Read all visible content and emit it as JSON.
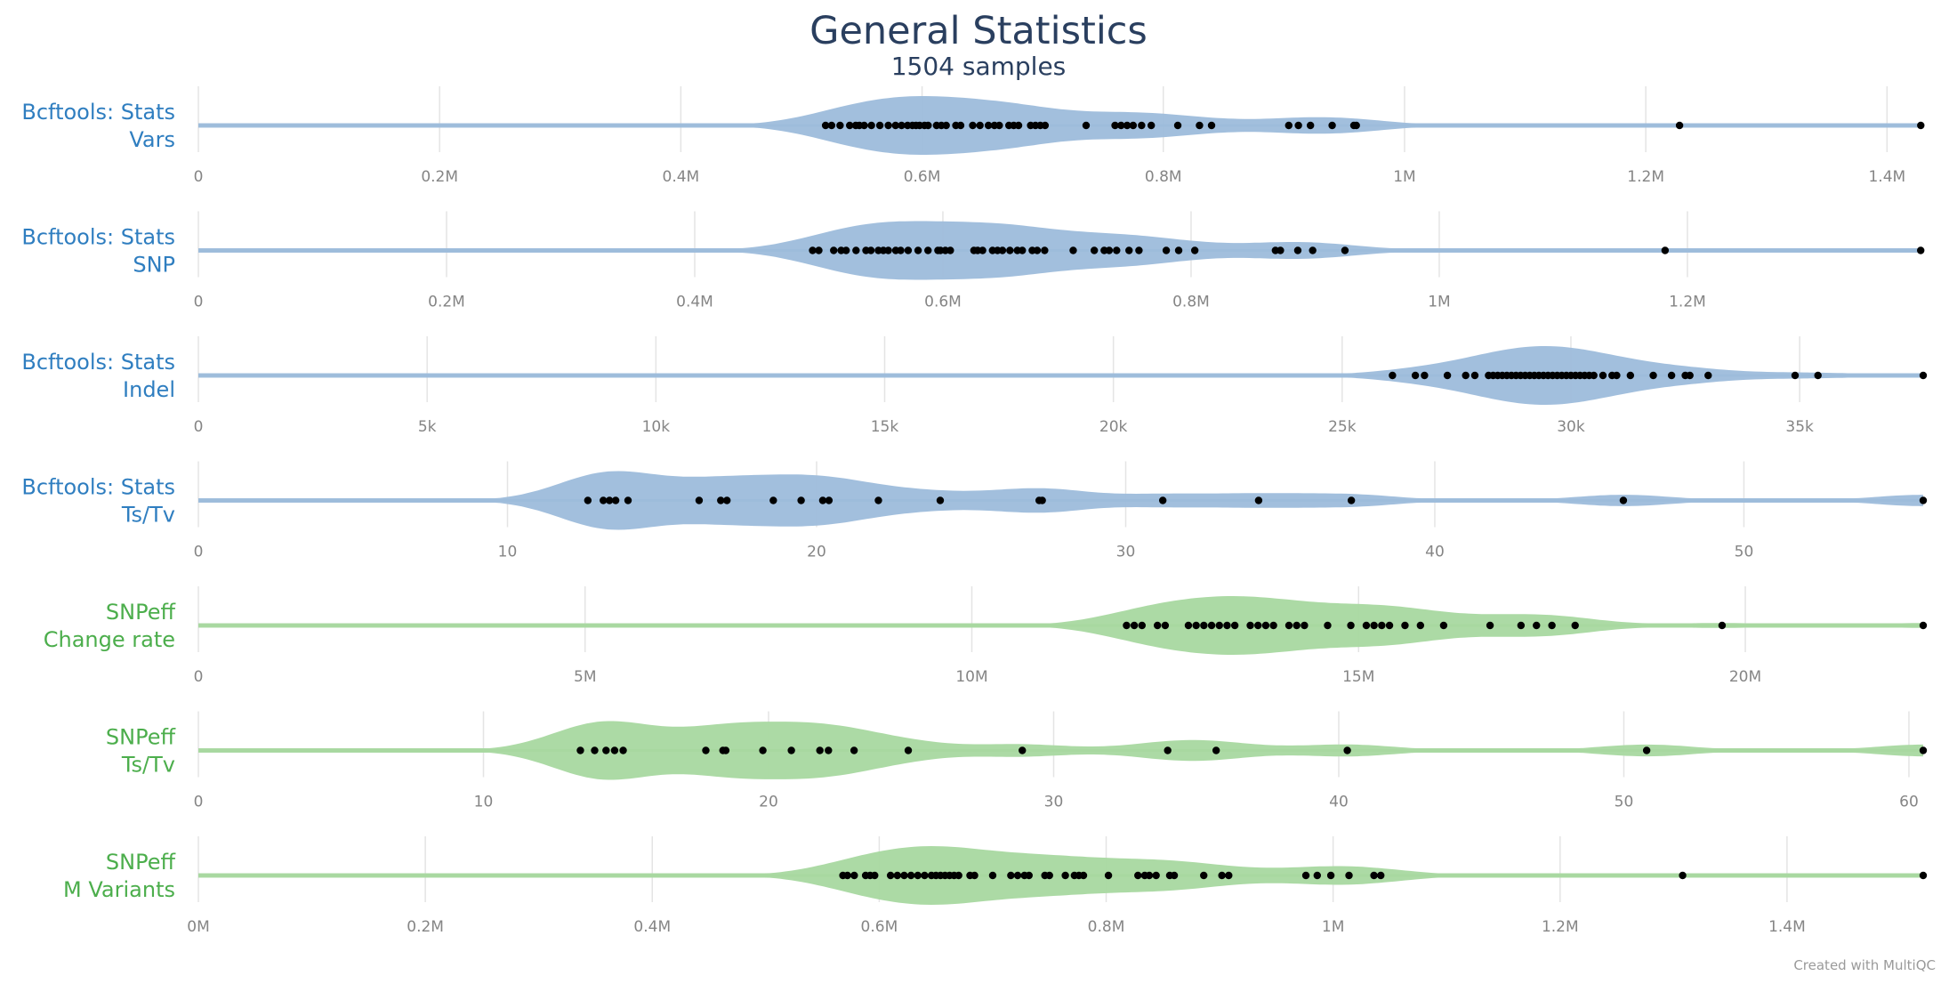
{
  "title": "General Statistics",
  "subtitle": "1504 samples",
  "credit": "Created with MultiQC",
  "chart_data": [
    {
      "type": "violin",
      "label": [
        "Bcftools: Stats",
        "Vars"
      ],
      "color": "#2f7ec0",
      "fill": "#9dbcdb",
      "xlim": [
        0,
        1430000
      ],
      "ticks": [
        0,
        200000,
        400000,
        600000,
        800000,
        1000000,
        1200000,
        1400000
      ],
      "tick_labels": [
        "0",
        "0.2M",
        "0.4M",
        "0.6M",
        "0.8M",
        "1M",
        "1.2M",
        "1.4M"
      ],
      "points": [
        520000,
        525000,
        532000,
        540000,
        545000,
        548000,
        552000,
        558000,
        565000,
        572000,
        578000,
        583000,
        588000,
        592000,
        595000,
        598000,
        602000,
        605000,
        612000,
        616000,
        620000,
        628000,
        632000,
        642000,
        648000,
        655000,
        660000,
        664000,
        672000,
        676000,
        680000,
        690000,
        694000,
        698000,
        702000,
        736000,
        760000,
        765000,
        770000,
        775000,
        782000,
        790000,
        812000,
        830000,
        840000,
        904000,
        912000,
        922000,
        940000,
        958000,
        960000,
        1228000,
        1428000
      ]
    },
    {
      "type": "violin",
      "label": [
        "Bcftools: Stats",
        "SNP"
      ],
      "color": "#2f7ec0",
      "fill": "#9dbcdb",
      "xlim": [
        0,
        1390000
      ],
      "ticks": [
        0,
        200000,
        400000,
        600000,
        800000,
        1000000,
        1200000
      ],
      "tick_labels": [
        "0",
        "0.2M",
        "0.4M",
        "0.6M",
        "0.8M",
        "1M",
        "1.2M"
      ],
      "points": [
        495000,
        500000,
        512000,
        518000,
        522000,
        530000,
        538000,
        542000,
        548000,
        552000,
        556000,
        562000,
        566000,
        572000,
        580000,
        588000,
        596000,
        598000,
        602000,
        606000,
        625000,
        628000,
        632000,
        640000,
        644000,
        648000,
        654000,
        660000,
        664000,
        672000,
        676000,
        682000,
        705000,
        722000,
        730000,
        734000,
        740000,
        750000,
        758000,
        780000,
        790000,
        803000,
        868000,
        872000,
        886000,
        898000,
        924000,
        1182000,
        1388000
      ]
    },
    {
      "type": "violin",
      "label": [
        "Bcftools: Stats",
        "Indel"
      ],
      "color": "#2f7ec0",
      "fill": "#9dbcdb",
      "xlim": [
        0,
        37700
      ],
      "ticks": [
        0,
        5000,
        10000,
        15000,
        20000,
        25000,
        30000,
        35000
      ],
      "tick_labels": [
        "0",
        "5k",
        "10k",
        "15k",
        "20k",
        "25k",
        "30k",
        "35k"
      ],
      "points": [
        26100,
        26600,
        26800,
        27300,
        27700,
        27900,
        28200,
        28300,
        28400,
        28500,
        28600,
        28700,
        28800,
        28900,
        29000,
        29100,
        29200,
        29300,
        29400,
        29500,
        29600,
        29700,
        29800,
        29900,
        30000,
        30100,
        30200,
        30300,
        30400,
        30500,
        30700,
        30900,
        31000,
        31300,
        31800,
        32200,
        32500,
        32600,
        33000,
        34900,
        35400,
        37700
      ]
    },
    {
      "type": "violin",
      "label": [
        "Bcftools: Stats",
        "Ts/Tv"
      ],
      "color": "#2f7ec0",
      "fill": "#9dbcdb",
      "xlim": [
        0,
        55.8
      ],
      "ticks": [
        0,
        10,
        20,
        30,
        40,
        50
      ],
      "tick_labels": [
        "0",
        "10",
        "20",
        "30",
        "40",
        "50"
      ],
      "points": [
        12.6,
        13.1,
        13.3,
        13.5,
        13.9,
        16.2,
        16.9,
        17.1,
        18.6,
        19.5,
        20.2,
        20.4,
        22.0,
        24.0,
        27.2,
        27.3,
        31.2,
        34.3,
        37.3,
        46.1,
        55.8
      ]
    },
    {
      "type": "violin",
      "label": [
        "SNPeff",
        "Change rate"
      ],
      "color": "#4cae4c",
      "fill": "#a8d8a0",
      "xlim": [
        0,
        22300000
      ],
      "ticks": [
        0,
        5000000,
        10000000,
        15000000,
        20000000
      ],
      "tick_labels": [
        "0",
        "5M",
        "10M",
        "15M",
        "20M"
      ],
      "points": [
        12000000,
        12100000,
        12200000,
        12400000,
        12500000,
        12800000,
        12900000,
        13000000,
        13100000,
        13200000,
        13300000,
        13400000,
        13600000,
        13700000,
        13800000,
        13900000,
        14100000,
        14200000,
        14300000,
        14600000,
        14900000,
        15100000,
        15200000,
        15300000,
        15400000,
        15600000,
        15800000,
        16100000,
        16700000,
        17100000,
        17300000,
        17500000,
        17800000,
        19700000,
        22300000
      ]
    },
    {
      "type": "violin",
      "label": [
        "SNPeff",
        "Ts/Tv"
      ],
      "color": "#4cae4c",
      "fill": "#a8d8a0",
      "xlim": [
        0,
        60.5
      ],
      "ticks": [
        0,
        10,
        20,
        30,
        40,
        50,
        60
      ],
      "tick_labels": [
        "0",
        "10",
        "20",
        "30",
        "40",
        "50",
        "60"
      ],
      "points": [
        13.4,
        13.9,
        14.3,
        14.6,
        14.9,
        17.8,
        18.4,
        18.5,
        19.8,
        20.8,
        21.8,
        22.1,
        23.0,
        24.9,
        28.9,
        34.0,
        35.7,
        40.3,
        50.8,
        60.5
      ]
    },
    {
      "type": "violin",
      "label": [
        "SNPeff",
        "M Variants"
      ],
      "color": "#4cae4c",
      "fill": "#a8d8a0",
      "xlim": [
        0,
        1520000
      ],
      "ticks": [
        0,
        200000,
        400000,
        600000,
        800000,
        1000000,
        1200000,
        1400000
      ],
      "tick_labels": [
        "0M",
        "0.2M",
        "0.4M",
        "0.6M",
        "0.8M",
        "1M",
        "1.2M",
        "1.4M"
      ],
      "points": [
        568000,
        572000,
        578000,
        588000,
        592000,
        596000,
        610000,
        616000,
        622000,
        628000,
        634000,
        640000,
        646000,
        650000,
        654000,
        658000,
        662000,
        666000,
        670000,
        680000,
        684000,
        700000,
        716000,
        722000,
        728000,
        732000,
        746000,
        750000,
        764000,
        772000,
        776000,
        780000,
        802000,
        828000,
        834000,
        838000,
        844000,
        856000,
        860000,
        886000,
        902000,
        908000,
        976000,
        986000,
        998000,
        1014000,
        1036000,
        1042000,
        1308000,
        1520000
      ]
    }
  ]
}
